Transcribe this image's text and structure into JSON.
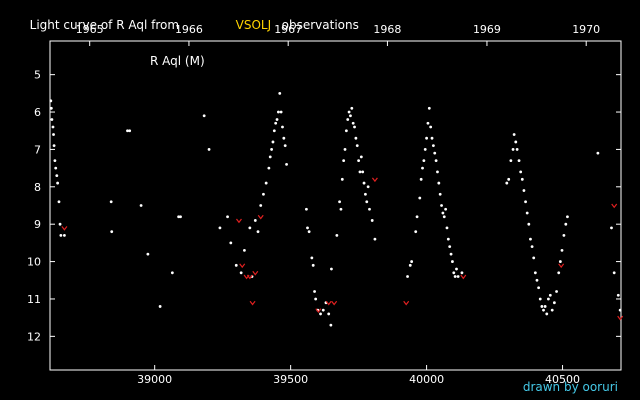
{
  "title": {
    "prefix": "Light curve of R Aql from",
    "highlight": "VSOLJ",
    "suffix": "observations",
    "highlight_color": "#ffd400"
  },
  "credit": "drawn by ooruri",
  "colors": {
    "background": "#000000",
    "axis": "#ffffff",
    "observation": "#ffffff",
    "upper_limit": "#e02020",
    "credit": "#45c8e6"
  },
  "chart_data": {
    "type": "scatter",
    "series_label": "R Aql (M)",
    "x_label": "",
    "y_label": "",
    "x_range": [
      38615,
      40715
    ],
    "y_range": [
      12.9,
      4.1
    ],
    "y_inverted": true,
    "x_ticks": [
      39000,
      39500,
      40000,
      40500
    ],
    "y_ticks": [
      5,
      6,
      7,
      8,
      9,
      10,
      11,
      12
    ],
    "top_axis_years": [
      {
        "label": "1965",
        "jd": 38761
      },
      {
        "label": "1966",
        "jd": 39126
      },
      {
        "label": "1967",
        "jd": 39491
      },
      {
        "label": "1968",
        "jd": 39856
      },
      {
        "label": "1969",
        "jd": 40222
      },
      {
        "label": "1970",
        "jd": 40587
      }
    ],
    "grid": false,
    "series": [
      {
        "type": "observations",
        "points": [
          [
            38618,
            5.7
          ],
          [
            38620,
            5.9
          ],
          [
            38622,
            6.2
          ],
          [
            38626,
            6.4
          ],
          [
            38628,
            6.6
          ],
          [
            38630,
            6.9
          ],
          [
            38633,
            7.3
          ],
          [
            38636,
            7.5
          ],
          [
            38640,
            7.7
          ],
          [
            38643,
            7.9
          ],
          [
            38648,
            8.4
          ],
          [
            38652,
            9.0
          ],
          [
            38655,
            9.3
          ],
          [
            38668,
            9.3
          ],
          [
            38840,
            8.4
          ],
          [
            38842,
            9.2
          ],
          [
            38900,
            6.5
          ],
          [
            38908,
            6.5
          ],
          [
            38950,
            8.5
          ],
          [
            38975,
            9.8
          ],
          [
            39020,
            11.2
          ],
          [
            39065,
            10.3
          ],
          [
            39088,
            8.8
          ],
          [
            39095,
            8.8
          ],
          [
            39182,
            6.1
          ],
          [
            39200,
            7.0
          ],
          [
            39240,
            9.1
          ],
          [
            39268,
            8.8
          ],
          [
            39280,
            9.5
          ],
          [
            39300,
            10.1
          ],
          [
            39318,
            10.3
          ],
          [
            39330,
            9.7
          ],
          [
            39350,
            9.1
          ],
          [
            39358,
            10.4
          ],
          [
            39370,
            8.9
          ],
          [
            39380,
            9.2
          ],
          [
            39390,
            8.5
          ],
          [
            39400,
            8.2
          ],
          [
            39410,
            7.9
          ],
          [
            39420,
            7.5
          ],
          [
            39425,
            7.2
          ],
          [
            39430,
            7.0
          ],
          [
            39435,
            6.8
          ],
          [
            39440,
            6.5
          ],
          [
            39445,
            6.3
          ],
          [
            39450,
            6.2
          ],
          [
            39455,
            6.0
          ],
          [
            39460,
            5.5
          ],
          [
            39465,
            6.0
          ],
          [
            39470,
            6.4
          ],
          [
            39475,
            6.7
          ],
          [
            39480,
            6.9
          ],
          [
            39485,
            7.4
          ],
          [
            39558,
            8.6
          ],
          [
            39562,
            9.1
          ],
          [
            39568,
            9.2
          ],
          [
            39578,
            9.9
          ],
          [
            39583,
            10.1
          ],
          [
            39588,
            10.8
          ],
          [
            39592,
            11.0
          ],
          [
            39600,
            11.3
          ],
          [
            39610,
            11.4
          ],
          [
            39620,
            11.3
          ],
          [
            39630,
            11.1
          ],
          [
            39640,
            11.4
          ],
          [
            39648,
            11.7
          ],
          [
            39650,
            10.2
          ],
          [
            39670,
            9.3
          ],
          [
            39680,
            8.4
          ],
          [
            39685,
            8.6
          ],
          [
            39690,
            7.8
          ],
          [
            39695,
            7.3
          ],
          [
            39700,
            7.0
          ],
          [
            39705,
            6.5
          ],
          [
            39710,
            6.2
          ],
          [
            39715,
            6.0
          ],
          [
            39720,
            6.1
          ],
          [
            39725,
            5.9
          ],
          [
            39730,
            6.3
          ],
          [
            39735,
            6.4
          ],
          [
            39740,
            6.7
          ],
          [
            39745,
            6.9
          ],
          [
            39750,
            7.3
          ],
          [
            39755,
            7.6
          ],
          [
            39760,
            7.2
          ],
          [
            39765,
            7.6
          ],
          [
            39770,
            7.9
          ],
          [
            39775,
            8.2
          ],
          [
            39780,
            8.4
          ],
          [
            39785,
            8.0
          ],
          [
            39790,
            8.6
          ],
          [
            39800,
            8.9
          ],
          [
            39810,
            9.4
          ],
          [
            39930,
            10.4
          ],
          [
            39940,
            10.1
          ],
          [
            39945,
            10.0
          ],
          [
            39960,
            9.2
          ],
          [
            39965,
            8.8
          ],
          [
            39975,
            8.3
          ],
          [
            39980,
            7.8
          ],
          [
            39985,
            7.5
          ],
          [
            39990,
            7.3
          ],
          [
            39995,
            7.0
          ],
          [
            40000,
            6.7
          ],
          [
            40005,
            6.3
          ],
          [
            40010,
            5.9
          ],
          [
            40015,
            6.4
          ],
          [
            40020,
            6.7
          ],
          [
            40025,
            6.9
          ],
          [
            40030,
            7.1
          ],
          [
            40035,
            7.3
          ],
          [
            40040,
            7.6
          ],
          [
            40045,
            7.9
          ],
          [
            40050,
            8.2
          ],
          [
            40055,
            8.5
          ],
          [
            40060,
            8.7
          ],
          [
            40065,
            8.8
          ],
          [
            40070,
            8.6
          ],
          [
            40075,
            9.1
          ],
          [
            40080,
            9.4
          ],
          [
            40085,
            9.6
          ],
          [
            40090,
            9.8
          ],
          [
            40095,
            10.0
          ],
          [
            40100,
            10.3
          ],
          [
            40105,
            10.4
          ],
          [
            40110,
            10.2
          ],
          [
            40116,
            10.4
          ],
          [
            40130,
            10.3
          ],
          [
            40295,
            7.9
          ],
          [
            40302,
            7.8
          ],
          [
            40310,
            7.3
          ],
          [
            40318,
            7.0
          ],
          [
            40322,
            6.6
          ],
          [
            40328,
            6.8
          ],
          [
            40333,
            7.0
          ],
          [
            40340,
            7.3
          ],
          [
            40346,
            7.6
          ],
          [
            40352,
            7.8
          ],
          [
            40358,
            8.1
          ],
          [
            40364,
            8.4
          ],
          [
            40370,
            8.7
          ],
          [
            40376,
            9.0
          ],
          [
            40382,
            9.4
          ],
          [
            40388,
            9.6
          ],
          [
            40394,
            9.9
          ],
          [
            40400,
            10.3
          ],
          [
            40406,
            10.5
          ],
          [
            40412,
            10.7
          ],
          [
            40418,
            11.0
          ],
          [
            40424,
            11.2
          ],
          [
            40430,
            11.3
          ],
          [
            40436,
            11.2
          ],
          [
            40442,
            11.4
          ],
          [
            40448,
            11.0
          ],
          [
            40455,
            10.9
          ],
          [
            40462,
            11.3
          ],
          [
            40470,
            11.1
          ],
          [
            40478,
            10.8
          ],
          [
            40486,
            10.3
          ],
          [
            40492,
            10.0
          ],
          [
            40498,
            9.7
          ],
          [
            40505,
            9.3
          ],
          [
            40512,
            9.0
          ],
          [
            40518,
            8.8
          ],
          [
            40630,
            7.1
          ],
          [
            40680,
            9.1
          ],
          [
            40690,
            10.3
          ],
          [
            40705,
            10.9
          ],
          [
            40712,
            11.3
          ]
        ]
      },
      {
        "type": "upper_limits",
        "points": [
          [
            38668,
            9.1
          ],
          [
            39310,
            8.9
          ],
          [
            39322,
            10.1
          ],
          [
            39338,
            10.4
          ],
          [
            39350,
            10.4
          ],
          [
            39360,
            11.1
          ],
          [
            39370,
            10.3
          ],
          [
            39390,
            8.8
          ],
          [
            39602,
            11.3
          ],
          [
            39640,
            11.1
          ],
          [
            39660,
            11.1
          ],
          [
            39810,
            7.8
          ],
          [
            39925,
            11.1
          ],
          [
            40135,
            10.4
          ],
          [
            40495,
            10.1
          ],
          [
            40690,
            8.5
          ],
          [
            40712,
            11.5
          ]
        ]
      }
    ]
  }
}
